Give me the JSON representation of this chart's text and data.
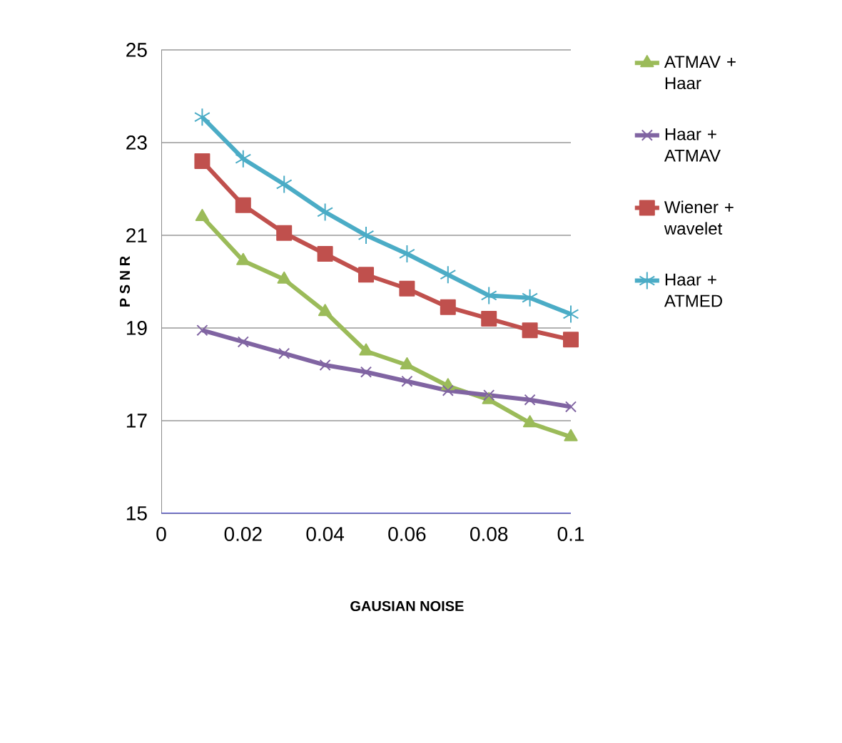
{
  "chart_data": {
    "type": "line",
    "xlabel": "GAUSIAN NOISE",
    "ylabel": "P S N R",
    "x": [
      0.01,
      0.02,
      0.03,
      0.04,
      0.05,
      0.06,
      0.07,
      0.08,
      0.09,
      0.1
    ],
    "series": [
      {
        "name": "ATMAV + Haar",
        "color": "#9bbb59",
        "marker": "triangle",
        "values": [
          21.4,
          20.45,
          20.05,
          19.35,
          18.5,
          18.2,
          17.75,
          17.45,
          16.95,
          16.65
        ]
      },
      {
        "name": "Haar + ATMAV",
        "color": "#8064a2",
        "marker": "cross",
        "values": [
          18.95,
          18.7,
          18.45,
          18.2,
          18.05,
          17.85,
          17.65,
          17.55,
          17.45,
          17.3
        ]
      },
      {
        "name": "Wiener + wavelet",
        "color": "#c0504d",
        "marker": "square",
        "values": [
          22.6,
          21.65,
          21.05,
          20.6,
          20.15,
          19.85,
          19.45,
          19.2,
          18.95,
          18.75
        ]
      },
      {
        "name": "Haar + ATMED",
        "color": "#4bacc6",
        "marker": "cross",
        "values": [
          23.55,
          22.65,
          22.1,
          21.5,
          21.0,
          20.6,
          20.15,
          19.7,
          19.65,
          19.3
        ]
      }
    ],
    "xlim": [
      0,
      0.1
    ],
    "xticks": [
      0,
      0.02,
      0.04,
      0.06,
      0.08,
      0.1
    ],
    "ylim": [
      15,
      25
    ],
    "yticks": [
      15,
      17,
      19,
      21,
      23,
      25
    ],
    "grid": "y",
    "legend": "right"
  }
}
